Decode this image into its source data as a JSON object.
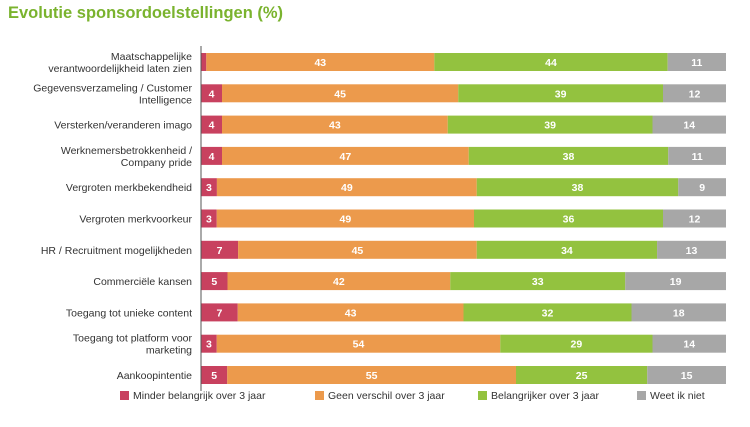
{
  "chart_data": {
    "type": "bar",
    "orientation": "horizontal",
    "stacked": true,
    "title": "Evolutie sponsordoelstellingen (%)",
    "categories": [
      [
        "Maatschappelijke",
        "verantwoordelijkheid laten zien"
      ],
      [
        "Gegevensverzameling / Customer",
        "Intelligence"
      ],
      [
        "Versterken/veranderen imago"
      ],
      [
        "Werknemersbetrokkenheid /",
        "Company pride"
      ],
      [
        "Vergroten merkbekendheid"
      ],
      [
        "Vergroten merkvoorkeur"
      ],
      [
        "HR / Recruitment mogelijkheden"
      ],
      [
        "Commerciële kansen"
      ],
      [
        "Toegang tot unieke content"
      ],
      [
        "Toegang tot platform voor",
        "marketing"
      ],
      [
        "Aankoopintentie"
      ]
    ],
    "series": [
      {
        "name": "Minder belangrijk over 3 jaar",
        "color": "#c8415f",
        "values": [
          1,
          4,
          4,
          4,
          3,
          3,
          7,
          5,
          7,
          3,
          5
        ],
        "labels": [
          "",
          "4",
          "4",
          "4",
          "3",
          "3",
          "7",
          "5",
          "7",
          "3",
          "5"
        ]
      },
      {
        "name": "Geen verschil over 3 jaar",
        "color": "#ec9a4c",
        "values": [
          43,
          45,
          43,
          47,
          49,
          49,
          45,
          42,
          43,
          54,
          55
        ],
        "labels": [
          "43",
          "45",
          "43",
          "47",
          "49",
          "49",
          "45",
          "42",
          "43",
          "54",
          "55"
        ]
      },
      {
        "name": "Belangrijker over 3 jaar",
        "color": "#93c23f",
        "values": [
          44,
          39,
          39,
          38,
          38,
          36,
          34,
          33,
          32,
          29,
          25
        ],
        "labels": [
          "44",
          "39",
          "39",
          "38",
          "38",
          "36",
          "34",
          "33",
          "32",
          "29",
          "25"
        ]
      },
      {
        "name": "Weet ik niet",
        "color": "#a7a7a7",
        "values": [
          11,
          12,
          14,
          11,
          9,
          12,
          13,
          19,
          18,
          14,
          15
        ],
        "labels": [
          "11",
          "12",
          "14",
          "11",
          "9",
          "12",
          "13",
          "19",
          "18",
          "14",
          "15"
        ]
      }
    ],
    "legend_position": "bottom",
    "grid": false
  }
}
